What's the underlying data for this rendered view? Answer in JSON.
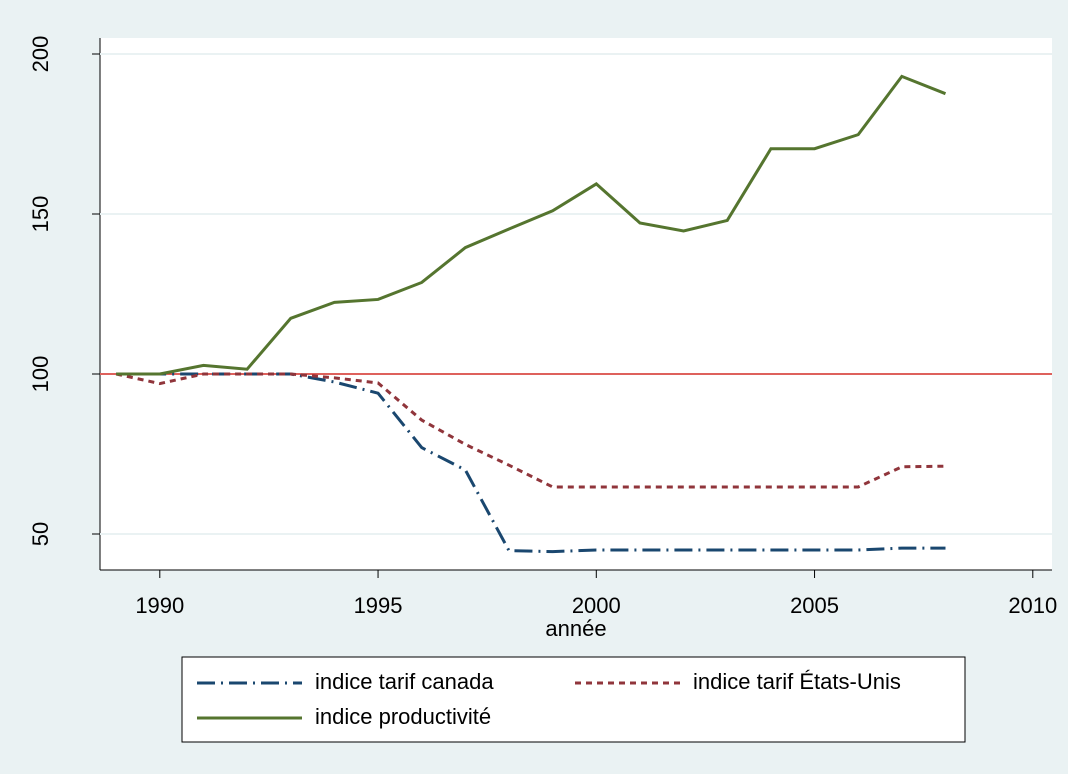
{
  "chart_data": {
    "type": "line",
    "x_label": "année",
    "x": [
      1989,
      1990,
      1991,
      1992,
      1993,
      1994,
      1995,
      1996,
      1997,
      1998,
      1999,
      2000,
      2001,
      2002,
      2003,
      2004,
      2005,
      2006,
      2007,
      2008
    ],
    "series": [
      {
        "name": "indice tarif canada",
        "color": "#1a476f",
        "dash": "dash-dot",
        "values": [
          100,
          100,
          100,
          100,
          100,
          97.5,
          94,
          77,
          70,
          44.8,
          44.5,
          45,
          45,
          45,
          45,
          45,
          45,
          45,
          45.6,
          45.6
        ]
      },
      {
        "name": "indice tarif États-Unis",
        "color": "#90353b",
        "dash": "dash",
        "values": [
          100,
          97,
          100,
          100,
          100,
          98.8,
          97.2,
          85.6,
          78,
          71.5,
          64.7,
          64.7,
          64.7,
          64.7,
          64.7,
          64.7,
          64.7,
          64.7,
          71,
          71.2
        ]
      },
      {
        "name": "indice productivité",
        "color": "#55752f",
        "dash": "solid",
        "values": [
          100,
          100,
          102.7,
          101.5,
          117.4,
          122.4,
          123.3,
          128.6,
          139.5,
          145.3,
          151,
          159.4,
          147.2,
          144.7,
          148,
          170.4,
          170.4,
          174.8,
          193,
          187.6
        ]
      }
    ],
    "reference_line": {
      "value": 100,
      "color": "#d9312b"
    },
    "xlim": [
      1988.63,
      2010.44
    ],
    "xticks": [
      1990,
      1995,
      2000,
      2005,
      2010
    ],
    "ylim": [
      38.75,
      205
    ],
    "yticks": [
      50,
      100,
      150,
      200
    ],
    "grid": true
  }
}
